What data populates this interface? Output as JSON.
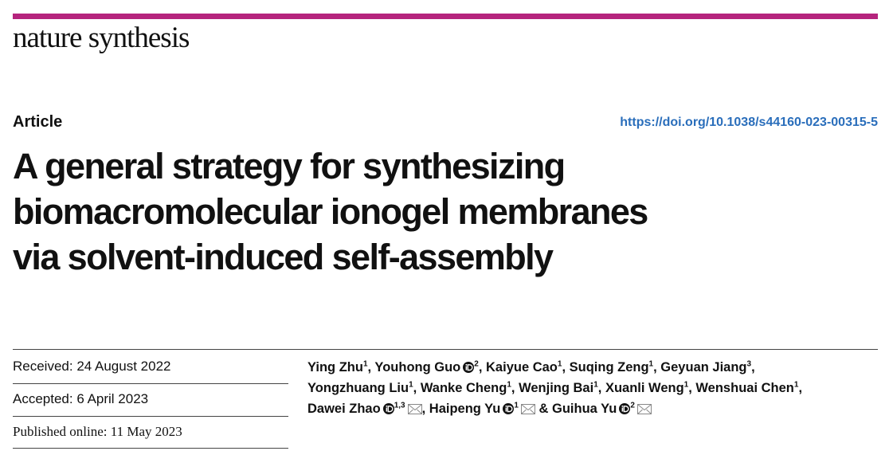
{
  "header": {
    "journal": "nature synthesis"
  },
  "article": {
    "type": "Article",
    "doi": "https://doi.org/10.1038/s44160-023-00315-5",
    "title_lines": [
      "A general strategy for synthesizing",
      "biomacromolecular ionogel membranes",
      "via solvent-induced self-assembly"
    ]
  },
  "dates": {
    "received": "Received: 24 August 2022",
    "accepted": "Accepted: 6 April 2023",
    "published": "Published online: 11 May 2023"
  },
  "authors": {
    "separator": ",",
    "last_separator": "&",
    "lines": [
      [
        {
          "name": "Ying Zhu",
          "affil": "1"
        },
        {
          "name": "Youhong Guo",
          "affil": "2",
          "orcid": true
        },
        {
          "name": "Kaiyue Cao",
          "affil": "1"
        },
        {
          "name": "Suqing Zeng",
          "affil": "1"
        },
        {
          "name": "Geyuan Jiang",
          "affil": "3"
        }
      ],
      [
        {
          "name": "Yongzhuang Liu",
          "affil": "1"
        },
        {
          "name": "Wanke Cheng",
          "affil": "1"
        },
        {
          "name": "Wenjing Bai",
          "affil": "1"
        },
        {
          "name": "Xuanli Weng",
          "affil": "1"
        },
        {
          "name": "Wenshuai Chen",
          "affil": "1"
        }
      ],
      [
        {
          "name": "Dawei Zhao",
          "affil": "1,3",
          "orcid": true,
          "email": true
        },
        {
          "name": "Haipeng Yu",
          "affil": "1",
          "orcid": true,
          "email": true
        },
        {
          "name": "Guihua Yu",
          "affil": "2",
          "orcid": true,
          "email": true
        }
      ]
    ]
  }
}
